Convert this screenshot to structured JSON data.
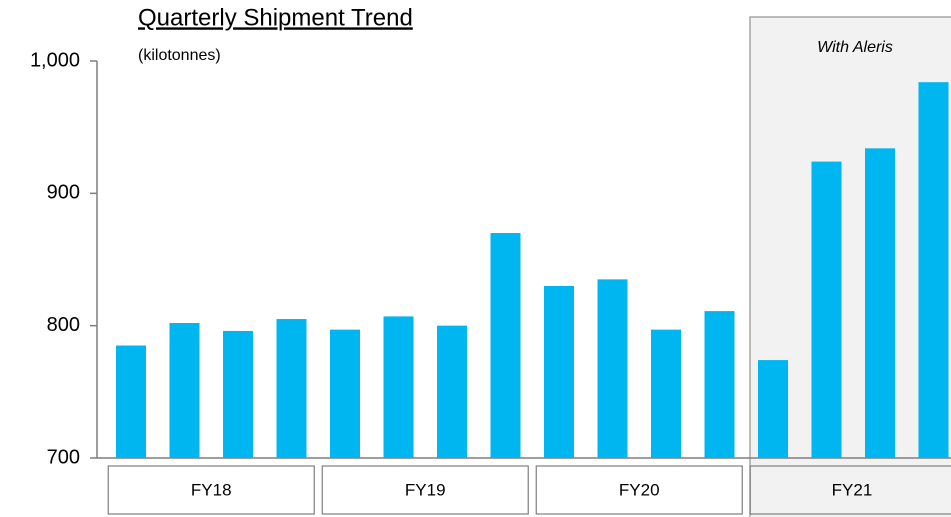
{
  "chart_data": {
    "type": "bar",
    "title": "Quarterly Shipment Trend",
    "subtitle": "(kilotonnes)",
    "annotation": "With Aleris",
    "categories": [
      null,
      null,
      null,
      null,
      null,
      null,
      null,
      null,
      null,
      null,
      null,
      null,
      null,
      null,
      null,
      null
    ],
    "values": [
      785,
      802,
      796,
      805,
      797,
      807,
      800,
      870,
      830,
      835,
      797,
      811,
      774,
      924,
      934,
      984
    ],
    "color": "#00b6f0",
    "group_labels": [
      "FY18",
      "FY19",
      "FY20",
      "FY21"
    ],
    "ylim": [
      700,
      1000
    ],
    "yticks": [
      700,
      800,
      900,
      {
        "value": 1000,
        "label": "1,000"
      }
    ],
    "grid": false
  }
}
